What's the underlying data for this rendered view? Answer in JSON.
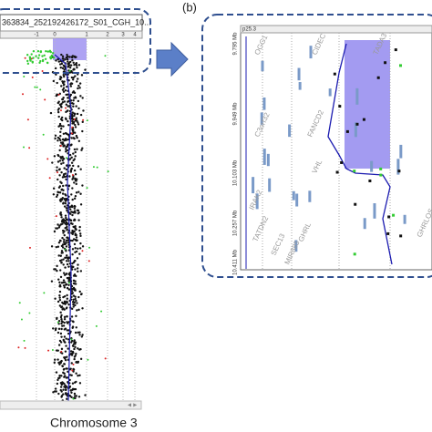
{
  "panel_label": "(b)",
  "left": {
    "header": "363834_252192426172_S01_CGH_10...",
    "axis_ticks": [
      "-1",
      "0",
      "1",
      "2",
      "3",
      "4"
    ],
    "chromosome": "Chromosome 3"
  },
  "right": {
    "band": "p25.3",
    "positions": [
      "9.795 Mb",
      "9.949 Mb",
      "10.103 Mb",
      "10.257 Mb",
      "10.411 Mb"
    ],
    "genes": [
      "OGG1",
      "CIDEC",
      "TADA3",
      "C3orf32",
      "FANCD2",
      "VHL",
      "IRAK2",
      "TATDN2",
      "GHRL",
      "SEC13",
      "MIR885",
      "GHRLOS"
    ]
  }
}
